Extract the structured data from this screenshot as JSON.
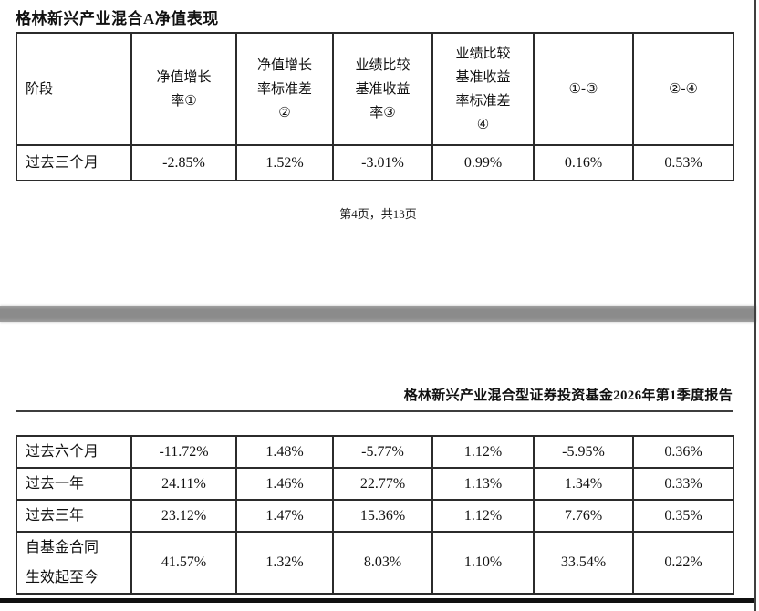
{
  "page1": {
    "title": "格林新兴产业混合A净值表现",
    "table": {
      "headers": {
        "stage": "阶段",
        "nav_growth": "净值增长\n率①",
        "nav_growth_std": "净值增长\n率标准差\n②",
        "benchmark_return": "业绩比较\n基准收益\n率③",
        "benchmark_return_std": "业绩比较\n基准收益\n率标准差\n④",
        "diff_1_3": "①-③",
        "diff_2_4": "②-④"
      },
      "rows": [
        {
          "stage": "过去三个月",
          "v1": "-2.85%",
          "v2": "1.52%",
          "v3": "-3.01%",
          "v4": "0.99%",
          "v5": "0.16%",
          "v6": "0.53%"
        }
      ]
    },
    "footer_page_number": "第4页，共13页"
  },
  "page2": {
    "header": "格林新兴产业混合型证券投资基金2026年第1季度报告",
    "table": {
      "rows": [
        {
          "stage": "过去六个月",
          "v1": "-11.72%",
          "v2": "1.48%",
          "v3": "-5.77%",
          "v4": "1.12%",
          "v5": "-5.95%",
          "v6": "0.36%"
        },
        {
          "stage": "过去一年",
          "v1": "24.11%",
          "v2": "1.46%",
          "v3": "22.77%",
          "v4": "1.13%",
          "v5": "1.34%",
          "v6": "0.33%"
        },
        {
          "stage": "过去三年",
          "v1": "23.12%",
          "v2": "1.47%",
          "v3": "15.36%",
          "v4": "1.12%",
          "v5": "7.76%",
          "v6": "0.35%"
        },
        {
          "stage": "自基金合同\n生效起至今",
          "v1": "41.57%",
          "v2": "1.32%",
          "v3": "8.03%",
          "v4": "1.10%",
          "v5": "33.54%",
          "v6": "0.22%"
        }
      ]
    }
  },
  "colors": {
    "table_border": "#2b2b2b",
    "page_separator_gray": "#8b8b8b",
    "section_divider_black": "#101010"
  }
}
